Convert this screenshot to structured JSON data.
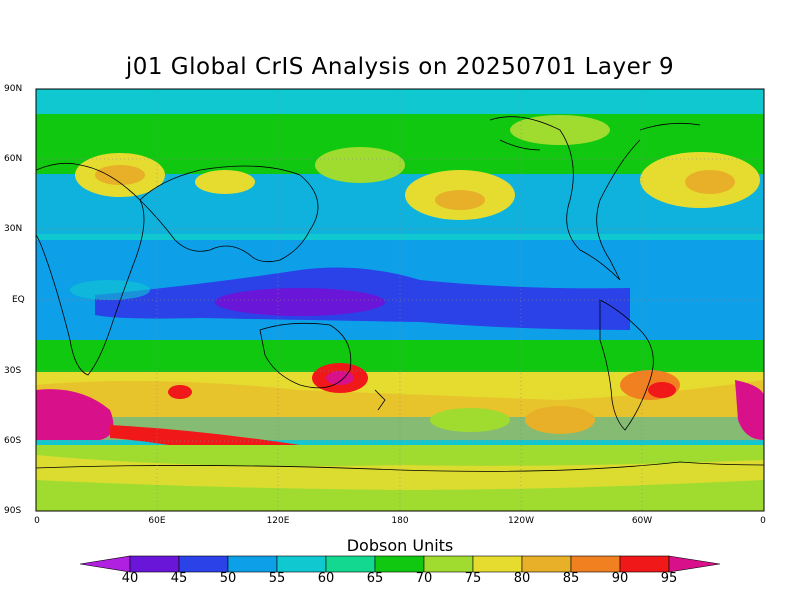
{
  "title": "j01 Global CrIS Analysis on 20250701 Layer 9",
  "colorbar": {
    "label": "Dobson Units",
    "ticks": [
      "40",
      "45",
      "50",
      "55",
      "60",
      "65",
      "70",
      "75",
      "80",
      "85",
      "90",
      "95"
    ],
    "colors": [
      "#b020e0",
      "#6a16d8",
      "#2a42e8",
      "#0da0e8",
      "#10c8d0",
      "#12d890",
      "#10c810",
      "#a0dc30",
      "#e6dc30",
      "#e8b028",
      "#f08020",
      "#f01818",
      "#d8108a"
    ]
  },
  "lat_labels": [
    "90N",
    "60N",
    "30N",
    "EQ",
    "30S",
    "60S",
    "90S"
  ],
  "lon_labels": [
    "0",
    "60E",
    "120E",
    "180",
    "120W",
    "60W",
    "0"
  ]
}
